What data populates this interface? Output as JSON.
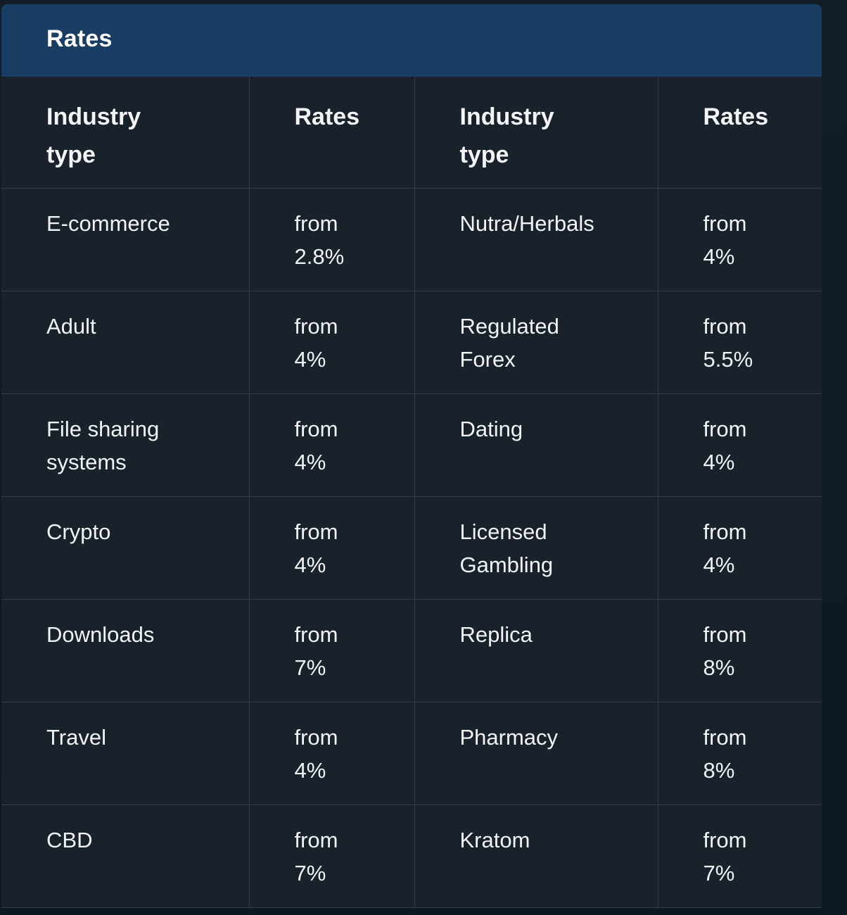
{
  "card": {
    "title": "Rates"
  },
  "table": {
    "headers": [
      "Industry type",
      "Rates",
      "Industry type",
      "Rates"
    ],
    "rows": [
      {
        "industry_a": "E-commerce",
        "rate_a": "from 2.8%",
        "industry_b": "Nutra/Herbals",
        "rate_b": "from 4%"
      },
      {
        "industry_a": "Adult",
        "rate_a": "from 4%",
        "industry_b": "Regulated Forex",
        "rate_b": "from 5.5%"
      },
      {
        "industry_a": "File sharing systems",
        "rate_a": "from 4%",
        "industry_b": "Dating",
        "rate_b": "from 4%"
      },
      {
        "industry_a": "Crypto",
        "rate_a": "from 4%",
        "industry_b": "Licensed Gambling",
        "rate_b": "from 4%"
      },
      {
        "industry_a": "Downloads",
        "rate_a": "from 7%",
        "industry_b": "Replica",
        "rate_b": "from 8%"
      },
      {
        "industry_a": "Travel",
        "rate_a": "from 4%",
        "industry_b": "Pharmacy",
        "rate_b": "from 8%"
      },
      {
        "industry_a": "CBD",
        "rate_a": "from 7%",
        "industry_b": "Kratom",
        "rate_b": "from 7%"
      }
    ]
  },
  "colors": {
    "header_bg": "#1a3e63",
    "card_bg": "#19212a",
    "grid_line": "#333d47",
    "text": "#f2f4f6"
  }
}
